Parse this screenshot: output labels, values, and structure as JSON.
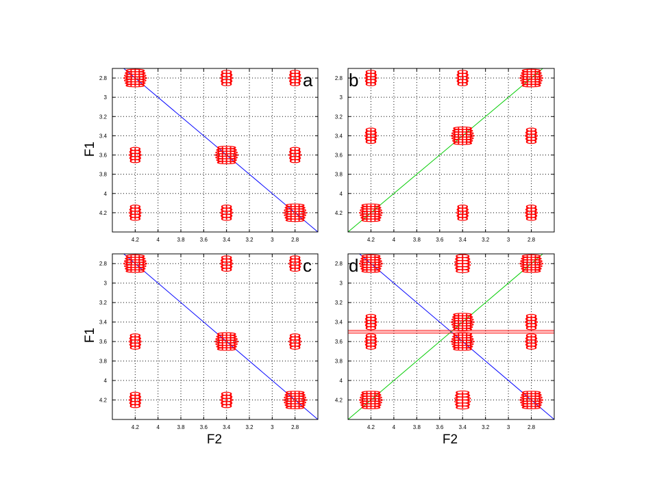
{
  "figure": {
    "xlabel": "F2",
    "ylabel": "F1"
  },
  "colors": {
    "peak": "#ff0000",
    "diag_blue": "#0000ff",
    "diag_green": "#00cc00",
    "grid": "#000000",
    "axes": "#000000"
  },
  "chart_data": [
    {
      "type": "scatter",
      "panel_letter": "a",
      "xlabel": "",
      "ylabel": "F1",
      "xlim": [
        4.4,
        2.6
      ],
      "ylim": [
        2.7,
        4.4
      ],
      "x_reversed": true,
      "y_reversed": true,
      "xticks": [
        "4.2",
        "4",
        "3.8",
        "3.6",
        "3.4",
        "3.2",
        "3",
        "2.8"
      ],
      "yticks": [
        "2.8",
        "3",
        "3.2",
        "3.4",
        "3.6",
        "3.8",
        "4",
        "4.2"
      ],
      "grid": true,
      "peaks": [
        {
          "x": 4.2,
          "y": 2.8,
          "size": "large"
        },
        {
          "x": 3.4,
          "y": 2.8,
          "size": "small"
        },
        {
          "x": 2.8,
          "y": 2.8,
          "size": "small"
        },
        {
          "x": 4.2,
          "y": 3.6,
          "size": "small"
        },
        {
          "x": 3.4,
          "y": 3.6,
          "size": "large"
        },
        {
          "x": 2.8,
          "y": 3.6,
          "size": "small"
        },
        {
          "x": 4.2,
          "y": 4.2,
          "size": "small"
        },
        {
          "x": 3.4,
          "y": 4.2,
          "size": "small"
        },
        {
          "x": 2.8,
          "y": 4.2,
          "size": "large"
        }
      ],
      "diagonals": [
        {
          "color": "blue",
          "from": [
            4.4,
            2.6
          ],
          "to": [
            2.6,
            4.4
          ]
        }
      ],
      "ridges": []
    },
    {
      "type": "scatter",
      "panel_letter": "b",
      "xlabel": "",
      "ylabel": "",
      "xlim": [
        4.4,
        2.6
      ],
      "ylim": [
        2.7,
        4.4
      ],
      "x_reversed": true,
      "y_reversed": true,
      "xticks": [
        "4.2",
        "4",
        "3.8",
        "3.6",
        "3.4",
        "3.2",
        "3",
        "2.8"
      ],
      "yticks": [
        "2.8",
        "3",
        "3.2",
        "3.4",
        "3.6",
        "3.8",
        "4",
        "4.2"
      ],
      "grid": true,
      "peaks": [
        {
          "x": 4.2,
          "y": 2.8,
          "size": "small"
        },
        {
          "x": 3.4,
          "y": 2.8,
          "size": "small"
        },
        {
          "x": 2.8,
          "y": 2.8,
          "size": "large"
        },
        {
          "x": 4.2,
          "y": 3.4,
          "size": "small"
        },
        {
          "x": 3.4,
          "y": 3.4,
          "size": "large"
        },
        {
          "x": 2.8,
          "y": 3.4,
          "size": "small"
        },
        {
          "x": 4.2,
          "y": 4.2,
          "size": "large"
        },
        {
          "x": 3.4,
          "y": 4.2,
          "size": "small"
        },
        {
          "x": 2.8,
          "y": 4.2,
          "size": "small"
        }
      ],
      "diagonals": [
        {
          "color": "green",
          "from": [
            4.4,
            4.4
          ],
          "to": [
            2.6,
            2.6
          ]
        }
      ],
      "ridges": []
    },
    {
      "type": "scatter",
      "panel_letter": "c",
      "xlabel": "F2",
      "ylabel": "F1",
      "xlim": [
        4.4,
        2.6
      ],
      "ylim": [
        2.7,
        4.4
      ],
      "x_reversed": true,
      "y_reversed": true,
      "xticks": [
        "4.2",
        "4",
        "3.8",
        "3.6",
        "3.4",
        "3.2",
        "3",
        "2.8"
      ],
      "yticks": [
        "2.8",
        "3",
        "3.2",
        "3.4",
        "3.6",
        "3.8",
        "4",
        "4.2"
      ],
      "grid": true,
      "peaks": [
        {
          "x": 4.2,
          "y": 2.8,
          "size": "large"
        },
        {
          "x": 3.4,
          "y": 2.8,
          "size": "small"
        },
        {
          "x": 2.8,
          "y": 2.8,
          "size": "small"
        },
        {
          "x": 4.2,
          "y": 3.6,
          "size": "small"
        },
        {
          "x": 3.4,
          "y": 3.6,
          "size": "large"
        },
        {
          "x": 2.8,
          "y": 3.6,
          "size": "small"
        },
        {
          "x": 4.2,
          "y": 4.2,
          "size": "small"
        },
        {
          "x": 3.4,
          "y": 4.2,
          "size": "small"
        },
        {
          "x": 2.8,
          "y": 4.2,
          "size": "large"
        }
      ],
      "diagonals": [
        {
          "color": "blue",
          "from": [
            4.4,
            2.6
          ],
          "to": [
            2.6,
            4.4
          ]
        }
      ],
      "ridges": []
    },
    {
      "type": "scatter",
      "panel_letter": "d",
      "xlabel": "F2",
      "ylabel": "",
      "xlim": [
        4.4,
        2.6
      ],
      "ylim": [
        2.7,
        4.4
      ],
      "x_reversed": true,
      "y_reversed": true,
      "xticks": [
        "4.2",
        "4",
        "3.8",
        "3.6",
        "3.4",
        "3.2",
        "3",
        "2.8"
      ],
      "yticks": [
        "2.8",
        "3",
        "3.2",
        "3.4",
        "3.6",
        "3.8",
        "4",
        "4.2"
      ],
      "grid": true,
      "peaks": [
        {
          "x": 4.2,
          "y": 2.8,
          "size": "large"
        },
        {
          "x": 3.4,
          "y": 2.8,
          "size": "medium"
        },
        {
          "x": 2.8,
          "y": 2.8,
          "size": "large"
        },
        {
          "x": 4.2,
          "y": 3.4,
          "size": "small"
        },
        {
          "x": 3.4,
          "y": 3.4,
          "size": "large"
        },
        {
          "x": 2.8,
          "y": 3.4,
          "size": "small"
        },
        {
          "x": 4.2,
          "y": 3.6,
          "size": "small"
        },
        {
          "x": 3.4,
          "y": 3.6,
          "size": "large"
        },
        {
          "x": 2.8,
          "y": 3.6,
          "size": "small"
        },
        {
          "x": 4.2,
          "y": 4.2,
          "size": "large"
        },
        {
          "x": 3.4,
          "y": 4.2,
          "size": "medium"
        },
        {
          "x": 2.8,
          "y": 4.2,
          "size": "large"
        }
      ],
      "diagonals": [
        {
          "color": "blue",
          "from": [
            4.4,
            2.6
          ],
          "to": [
            2.6,
            4.4
          ]
        },
        {
          "color": "green",
          "from": [
            4.4,
            4.4
          ],
          "to": [
            2.6,
            2.6
          ]
        }
      ],
      "ridges": [
        {
          "y": 3.5,
          "x_from": 4.4,
          "x_to": 2.6,
          "color": "red"
        }
      ]
    }
  ]
}
